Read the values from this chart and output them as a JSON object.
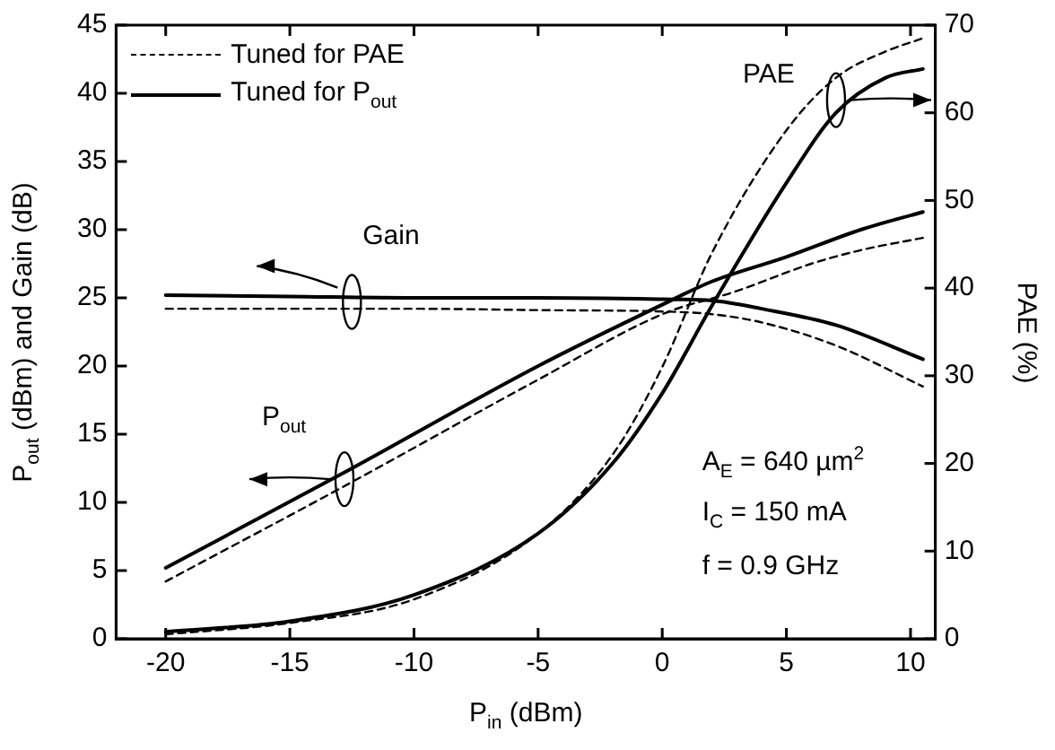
{
  "chart_data": {
    "type": "line",
    "xlabel": "P$_{in}$ (dBm)",
    "ylabel": "P$_{out}$ (dBm) and Gain (dB)",
    "y2label": "PAE (%)",
    "xlim": [
      -22,
      11
    ],
    "xticks": [
      -20,
      -15,
      -10,
      -5,
      0,
      5,
      10
    ],
    "ylim": [
      0,
      45
    ],
    "yticks": [
      0,
      5,
      10,
      15,
      20,
      25,
      30,
      35,
      40,
      45
    ],
    "y2lim": [
      0,
      70
    ],
    "y2ticks": [
      0,
      10,
      20,
      30,
      40,
      50,
      60,
      70
    ],
    "grid": false,
    "legend": "top left",
    "marker": "none",
    "series": [
      {
        "name": "Tuned for PAE",
        "color": "#000000",
        "line_style": "dashed",
        "x": [
          -20,
          -15,
          -10,
          -5,
          0,
          2,
          4,
          7,
          10.5
        ],
        "values": [
          24.2,
          24.2,
          24.2,
          24.1,
          24,
          23.8,
          23.2,
          21.5,
          18.5
        ]
      },
      {
        "name": "Tuned for P$_{out}$",
        "color": "#000000",
        "line_style": "solid",
        "x": [
          -20,
          -15,
          -10,
          -5,
          0,
          2,
          4,
          7,
          10.5
        ],
        "values": [
          25.2,
          25.1,
          25,
          25,
          24.9,
          24.8,
          24.2,
          23,
          20.5
        ]
      },
      {
        "color": "#000000",
        "line_style": "dashed",
        "x": [
          -20,
          -13,
          -5,
          0,
          3,
          6,
          8,
          10.5
        ],
        "values": [
          4.2,
          11,
          19,
          23.8,
          25.5,
          27.5,
          28.5,
          29.4
        ]
      },
      {
        "color": "#000000",
        "line_style": "solid",
        "x": [
          -20,
          -13,
          -5,
          0,
          2,
          5,
          8,
          10.5
        ],
        "values": [
          5.2,
          12,
          20,
          24.5,
          26.2,
          28,
          30,
          31.3
        ]
      },
      {
        "color": "#000000",
        "line_style": "dashed",
        "axis": "y2",
        "x": [
          -20,
          -15,
          -10,
          -5,
          -2,
          0,
          2,
          5,
          7,
          9,
          10.5
        ],
        "values": [
          0.5,
          1.8,
          4.5,
          12,
          21,
          31,
          44,
          58,
          64,
          67,
          68.5
        ]
      },
      {
        "color": "#000000",
        "line_style": "solid",
        "axis": "y2",
        "x": [
          -20,
          -15,
          -10,
          -5,
          -2,
          0,
          2,
          5,
          7,
          9,
          10.5
        ],
        "values": [
          0.8,
          2,
          5,
          12,
          20,
          28,
          38,
          52,
          60,
          64,
          65
        ]
      }
    ],
    "annotations": [
      {
        "text": "Gain",
        "x": -12.5,
        "y": 24.7
      },
      {
        "text": "P$_{out}$",
        "x": -12.8,
        "y": 11.7
      },
      {
        "text": "PAE",
        "x": 7,
        "y": 39.5
      },
      "A$_{E}$ = 640 µm$^{2}$",
      "I$_{C}$ = 150 mA",
      "f = 0.9 GHz"
    ]
  }
}
